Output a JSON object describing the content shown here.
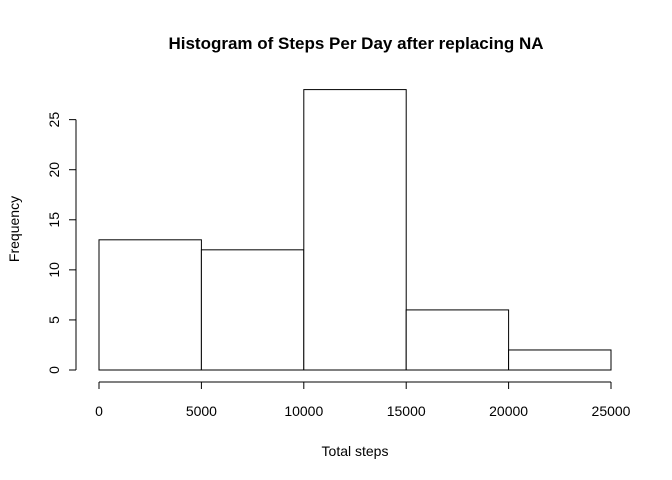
{
  "chart_data": {
    "type": "bar",
    "title": "Histogram of Steps Per Day after replacing NA",
    "xlabel": "Total steps",
    "ylabel": "Frequency",
    "bins": [
      {
        "from": 0,
        "to": 5000,
        "value": 13
      },
      {
        "from": 5000,
        "to": 10000,
        "value": 12
      },
      {
        "from": 10000,
        "to": 15000,
        "value": 28
      },
      {
        "from": 15000,
        "to": 20000,
        "value": 6
      },
      {
        "from": 20000,
        "to": 25000,
        "value": 2
      }
    ],
    "xticks": [
      0,
      5000,
      10000,
      15000,
      20000,
      25000
    ],
    "xtick_labels": [
      "0",
      "5000",
      "10000",
      "15000",
      "20000",
      "25000"
    ],
    "yticks": [
      0,
      5,
      10,
      15,
      20,
      25
    ],
    "ytick_labels": [
      "0",
      "5",
      "10",
      "15",
      "20",
      "25"
    ],
    "xlim": [
      0,
      25000
    ],
    "ylim": [
      0,
      28
    ],
    "grid": false,
    "bar_fill": "#ffffff",
    "bar_stroke": "#000000"
  }
}
